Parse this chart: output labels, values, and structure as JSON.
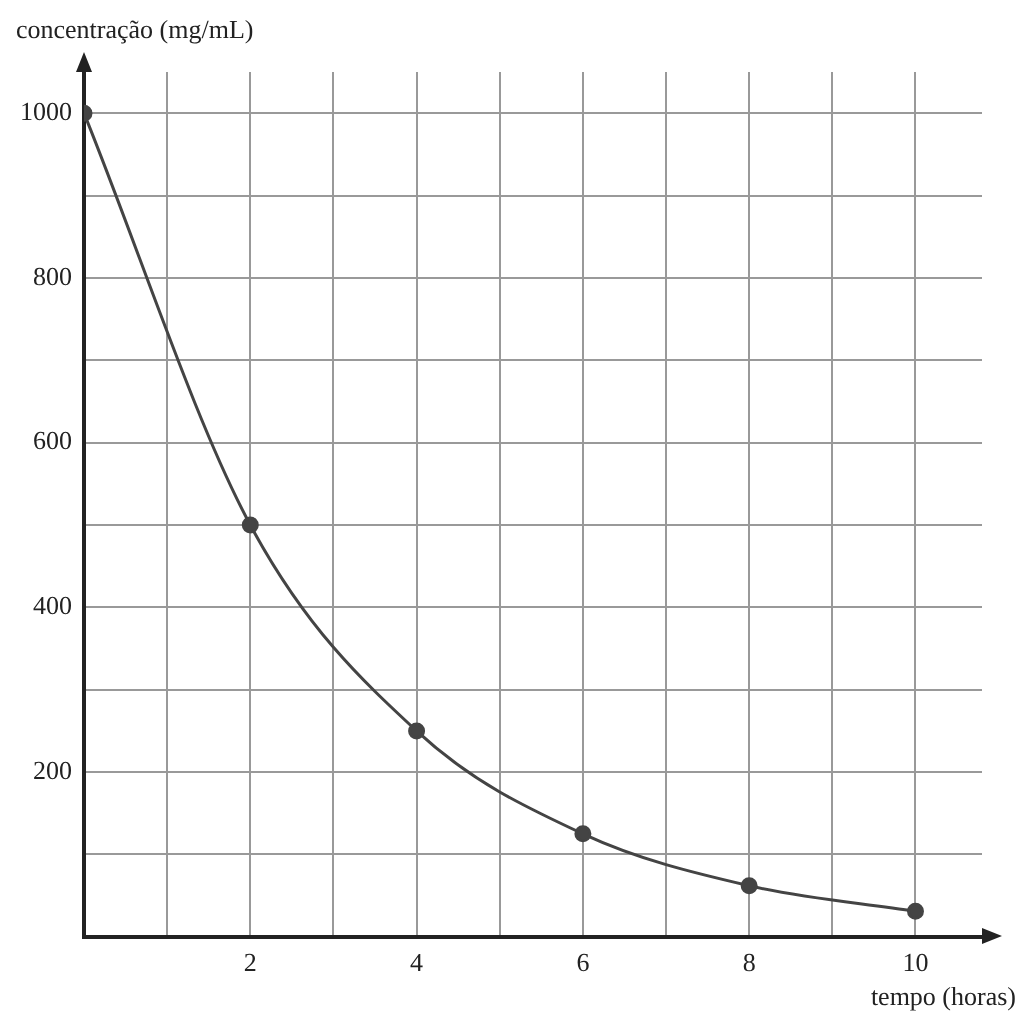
{
  "chart_data": {
    "type": "line",
    "xlabel": "tempo (horas)",
    "ylabel": "concentração (mg/mL)",
    "x": [
      0,
      2,
      4,
      6,
      8,
      10
    ],
    "series": [
      {
        "color": "#444444",
        "values": [
          1000,
          500,
          250,
          125,
          62,
          31
        ]
      }
    ],
    "xlim": [
      0,
      10.8
    ],
    "ylim": [
      0,
      1050
    ],
    "xticks": [
      {
        "value": 1,
        "label": null
      },
      2,
      {
        "value": 3,
        "label": null
      },
      4,
      {
        "value": 5,
        "label": null
      },
      6,
      {
        "value": 7,
        "label": null
      },
      8,
      {
        "value": 9,
        "label": null
      },
      10
    ],
    "yticks": [
      {
        "value": 100,
        "label": null
      },
      200,
      {
        "value": 300,
        "label": null
      },
      400,
      {
        "value": 500,
        "label": null
      },
      600,
      {
        "value": 700,
        "label": null
      },
      800,
      {
        "value": 900,
        "label": null
      },
      1000
    ],
    "grid": true,
    "legend": false,
    "marker": "circle",
    "line_style": "solid"
  }
}
